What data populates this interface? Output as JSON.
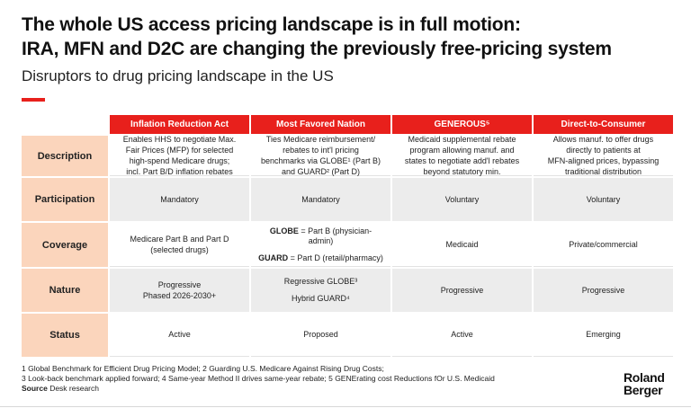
{
  "title_line1": "The whole US access pricing landscape is in full motion:",
  "title_line2": "IRA, MFN and D2C are changing the previously free-pricing system",
  "subtitle": "Disruptors to drug pricing landscape in the US",
  "columns": [
    "Inflation Reduction Act",
    "Most Favored Nation",
    "GENEROUS⁵",
    "Direct-to-Consumer"
  ],
  "rows": {
    "description": {
      "label": "Description",
      "cells": [
        [
          "Enables HHS to negotiate Max.",
          "Fair Prices (MFP) for selected",
          "high-spend Medicare drugs;",
          "incl. Part B/D inflation rebates"
        ],
        [
          "Ties Medicare reimbursement/",
          "rebates to int'l pricing",
          "benchmarks via GLOBE¹ (Part B)",
          "and GUARD² (Part D)"
        ],
        [
          "Medicaid supplemental rebate",
          "program allowing manuf. and",
          "states to negotiate add'l rebates",
          "beyond statutory min."
        ],
        [
          "Allows manuf. to offer drugs",
          "directly to patients at",
          "MFN-aligned prices, bypassing",
          "traditional distribution"
        ]
      ]
    },
    "participation": {
      "label": "Participation",
      "cells": [
        "Mandatory",
        "Mandatory",
        "Voluntary",
        "Voluntary"
      ]
    },
    "coverage": {
      "label": "Coverage",
      "ira": [
        "Medicare Part B and Part D",
        "(selected drugs)"
      ],
      "mfn_globe_key": "GLOBE",
      "mfn_globe_text": " = Part B (physician-admin)",
      "mfn_guard_key": "GUARD",
      "mfn_guard_text": " = Part D (retail/pharmacy)",
      "generous": "Medicaid",
      "d2c": "Private/commercial"
    },
    "nature": {
      "label": "Nature",
      "ira": [
        "Progressive",
        "Phased 2026-2030+"
      ],
      "mfn": [
        "Regressive GLOBE³",
        "Hybrid GUARD⁴"
      ],
      "generous": "Progressive",
      "d2c": "Progressive"
    },
    "status": {
      "label": "Status",
      "cells": [
        "Active",
        "Proposed",
        "Active",
        "Emerging"
      ]
    }
  },
  "footnotes": {
    "line1": "1 Global Benchmark for Efficient Drug Pricing Model;  2 Guarding U.S. Medicare Against Rising Drug Costs;",
    "line2": "3 Look-back benchmark applied forward;  4 Same-year Method II drives same-year rebate;  5 GENErating cost Reductions fOr U.S. Medicaid",
    "source_label": "Source",
    "source_text": " Desk research"
  },
  "logo": {
    "line1": "Roland",
    "line2": "Berger"
  },
  "colors": {
    "accent": "#e8201c",
    "label_bg": "#fbd5bc",
    "shade": "#ececec"
  }
}
